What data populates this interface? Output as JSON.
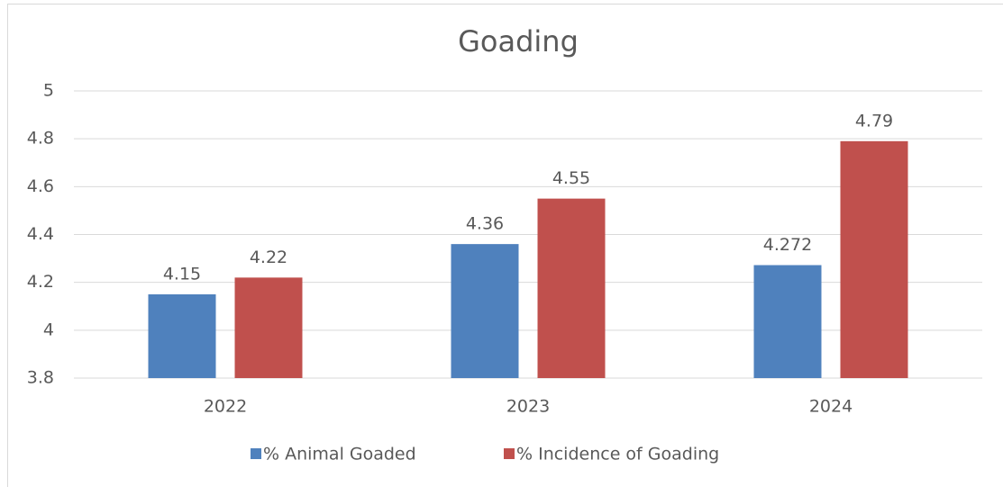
{
  "chart_data": {
    "type": "bar",
    "title": "Goading",
    "categories": [
      "2022",
      "2023",
      "2024"
    ],
    "series": [
      {
        "name": "% Animal Goaded",
        "color": "#4f81bd",
        "values": [
          4.15,
          4.36,
          4.272
        ]
      },
      {
        "name": "% Incidence of Goading",
        "color": "#c0504d",
        "values": [
          4.22,
          4.55,
          4.79
        ]
      }
    ],
    "ylim": [
      3.8,
      5
    ],
    "yticks": [
      3.8,
      4,
      4.2,
      4.4,
      4.6,
      4.8,
      5
    ],
    "grid": true,
    "legend": "bottom"
  }
}
